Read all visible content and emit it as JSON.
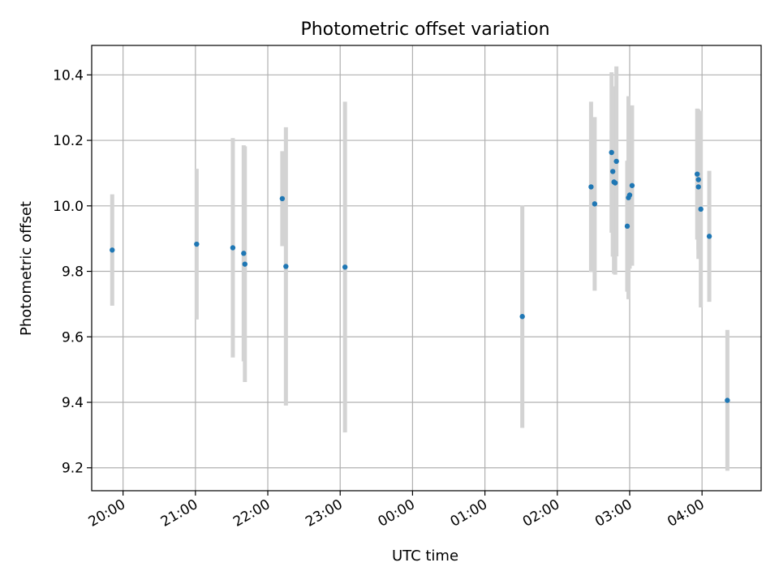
{
  "chart_data": {
    "type": "scatter",
    "title": "Photometric offset variation",
    "xlabel": "UTC time",
    "ylabel": "Photometric offset",
    "x_axis_type": "time",
    "x_tick_labels": [
      "20:00",
      "21:00",
      "22:00",
      "23:00",
      "00:00",
      "01:00",
      "02:00",
      "03:00",
      "04:00"
    ],
    "xlim": [
      "19:34",
      "04:49"
    ],
    "y_ticks": [
      9.2,
      9.4,
      9.6,
      9.8,
      10.0,
      10.2,
      10.4
    ],
    "ylim": [
      9.13,
      10.49
    ],
    "grid": true,
    "marker_color": "#1f77b4",
    "errorbar_color": "#d3d3d3",
    "points": [
      {
        "x": "19:51",
        "y": 9.865,
        "err": 0.17
      },
      {
        "x": "21:01",
        "y": 9.883,
        "err": 0.23
      },
      {
        "x": "21:31",
        "y": 9.872,
        "err": 0.335
      },
      {
        "x": "21:40",
        "y": 9.855,
        "err": 0.33
      },
      {
        "x": "21:41",
        "y": 9.822,
        "err": 0.36
      },
      {
        "x": "22:12",
        "y": 10.022,
        "err": 0.145
      },
      {
        "x": "22:15",
        "y": 9.815,
        "err": 0.425
      },
      {
        "x": "23:04",
        "y": 9.813,
        "err": 0.505
      },
      {
        "x": "01:31",
        "y": 9.662,
        "err": 0.34
      },
      {
        "x": "02:28",
        "y": 10.058,
        "err": 0.26
      },
      {
        "x": "02:31",
        "y": 10.006,
        "err": 0.265
      },
      {
        "x": "02:45",
        "y": 10.163,
        "err": 0.245
      },
      {
        "x": "02:46",
        "y": 10.105,
        "err": 0.26
      },
      {
        "x": "02:47",
        "y": 10.073,
        "err": 0.28
      },
      {
        "x": "02:48",
        "y": 10.07,
        "err": 0.28
      },
      {
        "x": "02:49",
        "y": 10.136,
        "err": 0.29
      },
      {
        "x": "02:58",
        "y": 9.938,
        "err": 0.2
      },
      {
        "x": "02:59",
        "y": 10.025,
        "err": 0.31
      },
      {
        "x": "03:00",
        "y": 10.033,
        "err": 0.225
      },
      {
        "x": "03:02",
        "y": 10.062,
        "err": 0.245
      },
      {
        "x": "03:56",
        "y": 10.097,
        "err": 0.2
      },
      {
        "x": "03:57",
        "y": 10.08,
        "err": 0.215
      },
      {
        "x": "03:57",
        "y": 10.058,
        "err": 0.22
      },
      {
        "x": "03:59",
        "y": 9.99,
        "err": 0.3
      },
      {
        "x": "04:06",
        "y": 9.907,
        "err": 0.2
      },
      {
        "x": "04:21",
        "y": 9.406,
        "err": 0.215
      }
    ]
  }
}
